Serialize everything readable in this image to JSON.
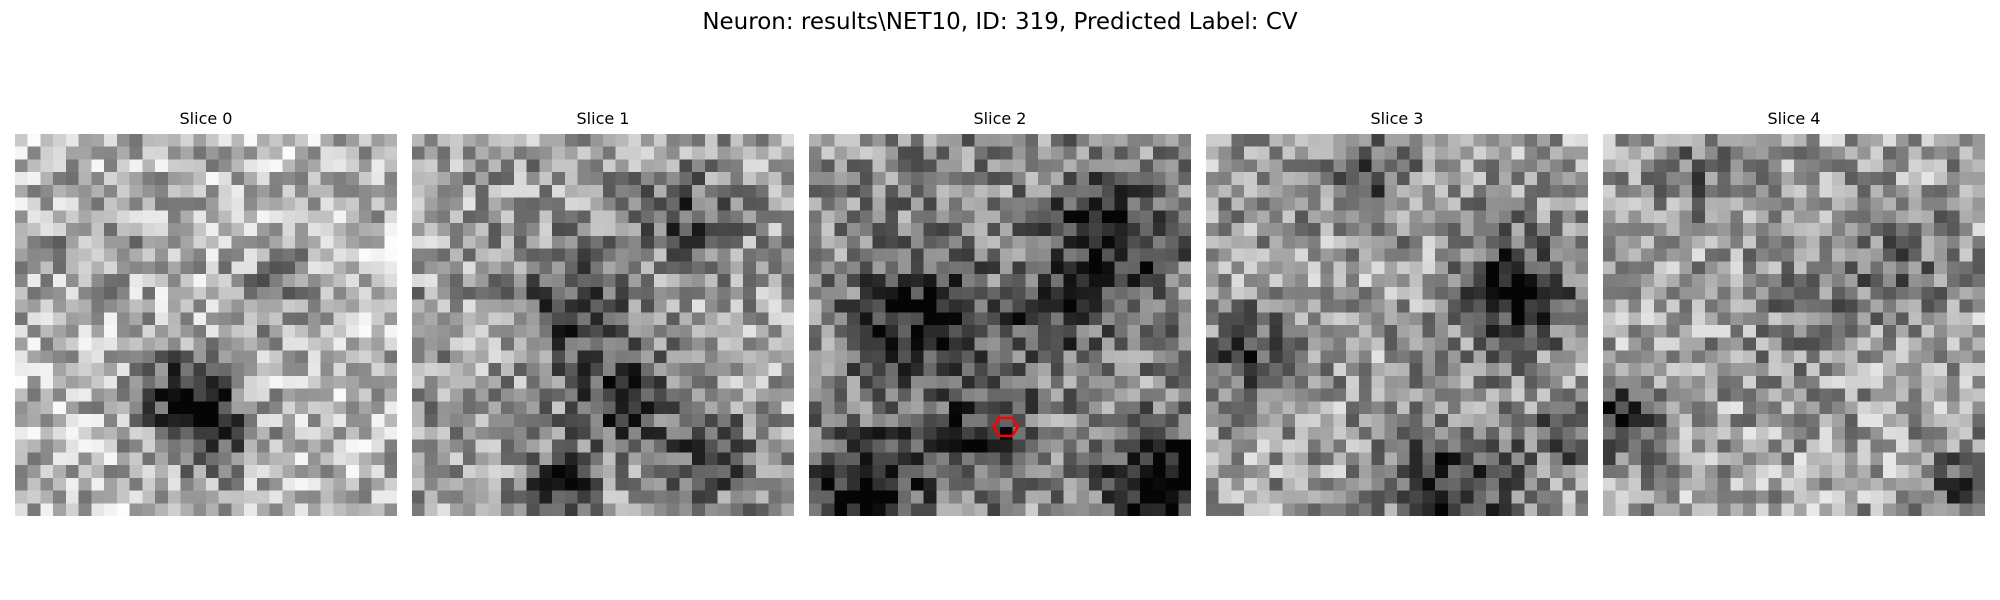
{
  "figure": {
    "title": "Neuron: results\\NET10, ID: 319, Predicted Label: CV"
  },
  "panels": [
    {
      "title": "Slice 0"
    },
    {
      "title": "Slice 1"
    },
    {
      "title": "Slice 2",
      "has_marker": true
    },
    {
      "title": "Slice 3"
    },
    {
      "title": "Slice 4"
    }
  ],
  "colors": {
    "marker": "#ff0000",
    "colormap": "gray"
  },
  "icons": {
    "marker": "red-hexagon-outline"
  }
}
